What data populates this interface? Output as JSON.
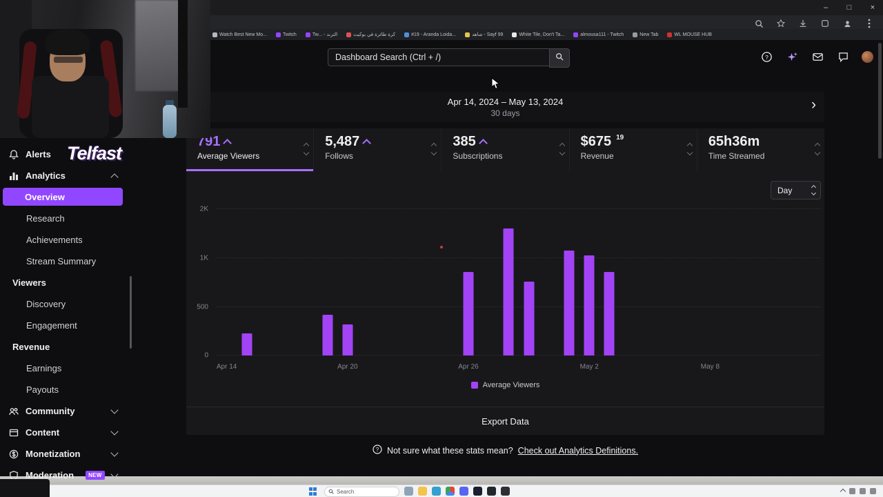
{
  "browser": {
    "window_controls": [
      {
        "name": "minimize",
        "glyph": "–"
      },
      {
        "name": "maximize",
        "glyph": "□"
      },
      {
        "name": "close",
        "glyph": "×"
      }
    ],
    "bookmarks": [
      {
        "label": "Watch Best New Mo...",
        "color": "#b8b8bc"
      },
      {
        "label": "Twitch",
        "color": "#9147ff"
      },
      {
        "label": "Tw... - الترند",
        "color": "#9147ff"
      },
      {
        "label": "كرة طائرة في بوكيت",
        "color": "#e0524f"
      },
      {
        "label": "#19 - Aranda Loida...",
        "color": "#4f8fd9"
      },
      {
        "label": "شاهد - Sayf 99",
        "color": "#e5c44c"
      },
      {
        "label": "White Tile, Don't Ta...",
        "color": "#e8e8e8"
      },
      {
        "label": "almousa111 - Twitch",
        "color": "#9147ff"
      },
      {
        "label": "New Tab",
        "color": "#9a9a9e"
      },
      {
        "label": "WL MOUSE HUB",
        "color": "#cc3333"
      }
    ]
  },
  "overlay": {
    "brand": "Telfast"
  },
  "header": {
    "search_placeholder": "Dashboard Search (Ctrl + /)"
  },
  "sidebar": {
    "items": [
      {
        "label": "Alerts",
        "icon": "bell",
        "type": "top"
      },
      {
        "label": "Analytics",
        "icon": "chart",
        "type": "top",
        "chevron": "up"
      },
      {
        "label": "Overview",
        "type": "sub",
        "selected": true
      },
      {
        "label": "Research",
        "type": "sub"
      },
      {
        "label": "Achievements",
        "type": "sub"
      },
      {
        "label": "Stream Summary",
        "type": "sub"
      },
      {
        "label": "Viewers",
        "type": "group"
      },
      {
        "label": "Discovery",
        "type": "sub"
      },
      {
        "label": "Engagement",
        "type": "sub"
      },
      {
        "label": "Revenue",
        "type": "group"
      },
      {
        "label": "Earnings",
        "type": "sub"
      },
      {
        "label": "Payouts",
        "type": "sub"
      },
      {
        "label": "Community",
        "icon": "people",
        "type": "top",
        "chevron": "down"
      },
      {
        "label": "Content",
        "icon": "box",
        "type": "top",
        "chevron": "down"
      },
      {
        "label": "Monetization",
        "icon": "dollar",
        "type": "top",
        "chevron": "down"
      },
      {
        "label": "Moderation",
        "icon": "shield",
        "type": "top",
        "chevron": "down",
        "badge": "NEW"
      }
    ]
  },
  "date_bar": {
    "range": "Apr 14, 2024 – May 13, 2024",
    "duration": "30 days",
    "next_glyph": "›"
  },
  "stats": [
    {
      "value": "791",
      "caret": "up",
      "label": "Average Viewers",
      "selected": true
    },
    {
      "value": "5,487",
      "caret": "up",
      "label": "Follows"
    },
    {
      "value": "385",
      "caret": "up",
      "label": "Subscriptions"
    },
    {
      "value": "$675",
      "cents": "19",
      "label": "Revenue"
    },
    {
      "value": "65h36m",
      "label": "Time Streamed"
    }
  ],
  "controls": {
    "granularity": "Day"
  },
  "chart_data": {
    "type": "bar",
    "title": "Average Viewers by day",
    "granularity": "Day",
    "days_total": 30,
    "x_range": [
      "Apr 14, 2024",
      "May 13, 2024"
    ],
    "x_ticks": [
      {
        "label": "Apr 14",
        "day": 0
      },
      {
        "label": "Apr 20",
        "day": 6
      },
      {
        "label": "Apr 26",
        "day": 12
      },
      {
        "label": "May 2",
        "day": 18
      },
      {
        "label": "May 8",
        "day": 24
      }
    ],
    "y_ticks": [
      {
        "label": "0",
        "value": 0
      },
      {
        "label": "500",
        "value": 500
      },
      {
        "label": "1K",
        "value": 1000
      },
      {
        "label": "2K",
        "value": 2000
      }
    ],
    "ylim": [
      0,
      2000
    ],
    "grid": true,
    "bar_color": "#a243f5",
    "legend": [
      {
        "label": "Average Viewers",
        "color": "#a243f5"
      }
    ],
    "points": [
      {
        "date": "Apr 15",
        "day": 1,
        "value": 230
      },
      {
        "date": "Apr 19",
        "day": 5,
        "value": 420
      },
      {
        "date": "Apr 20",
        "day": 6,
        "value": 320
      },
      {
        "date": "Apr 26",
        "day": 12,
        "value": 860
      },
      {
        "date": "Apr 28",
        "day": 14,
        "value": 1600
      },
      {
        "date": "Apr 29",
        "day": 15,
        "value": 760
      },
      {
        "date": "May 1",
        "day": 17,
        "value": 1150
      },
      {
        "date": "May 2",
        "day": 18,
        "value": 1050
      },
      {
        "date": "May 3",
        "day": 19,
        "value": 860
      }
    ]
  },
  "export_label": "Export Data",
  "footer": {
    "text": "Not sure what these stats mean?",
    "link": "Check out Analytics Definitions."
  },
  "taskbar": {
    "search_label": "Search",
    "icons": [
      "task-view",
      "file-explorer",
      "edge",
      "chrome",
      "discord",
      "steam",
      "obs",
      "epic"
    ]
  }
}
